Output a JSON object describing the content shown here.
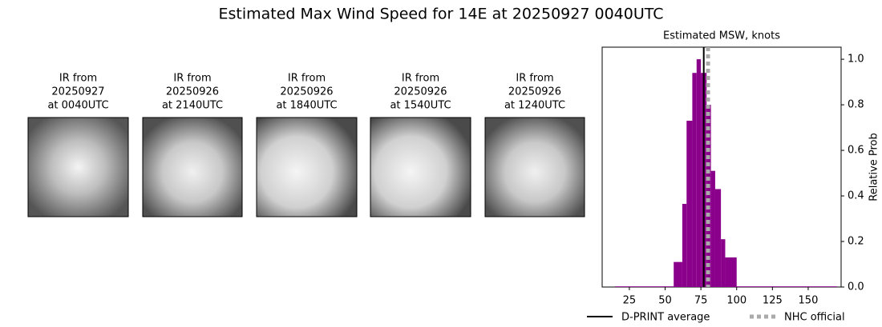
{
  "title": "Estimated Max Wind Speed for 14E at 20250927 0040UTC",
  "panels": [
    {
      "title": [
        "IR from",
        "20250927",
        "at 0040UTC"
      ]
    },
    {
      "title": [
        "IR from",
        "20250926",
        "at 2140UTC"
      ]
    },
    {
      "title": [
        "IR from",
        "20250926",
        "at 1840UTC"
      ]
    },
    {
      "title": [
        "IR from",
        "20250926",
        "at 1540UTC"
      ]
    },
    {
      "title": [
        "IR from",
        "20250926",
        "at 1240UTC"
      ]
    }
  ],
  "chart_data": {
    "type": "histogram",
    "title": "Estimated MSW, knots",
    "y_label": "Relative Prob",
    "bins": [
      15,
      56,
      62,
      65,
      69,
      72,
      75,
      79,
      82,
      85,
      89,
      92,
      100,
      170
    ],
    "values": [
      0.003,
      0.11,
      0.365,
      0.73,
      0.94,
      1.0,
      0.94,
      0.8,
      0.51,
      0.43,
      0.21,
      0.13,
      0.003
    ],
    "color": "#8b008b",
    "xlim": [
      6,
      173
    ],
    "xticks": [
      25,
      50,
      75,
      100,
      125,
      150
    ],
    "ylim": [
      0,
      1.053
    ],
    "yticks": [
      {
        "value": 0,
        "label": "0.0"
      },
      0.2,
      0.4,
      0.6,
      0.8,
      {
        "value": 1,
        "label": "1.0"
      }
    ],
    "lines": [
      {
        "name": "D-PRINT average",
        "value": 77,
        "color": "#000000",
        "style": "solid"
      },
      {
        "name": "NHC official",
        "value": 80,
        "color": "#aaaaaa",
        "style": "dotted"
      }
    ]
  }
}
